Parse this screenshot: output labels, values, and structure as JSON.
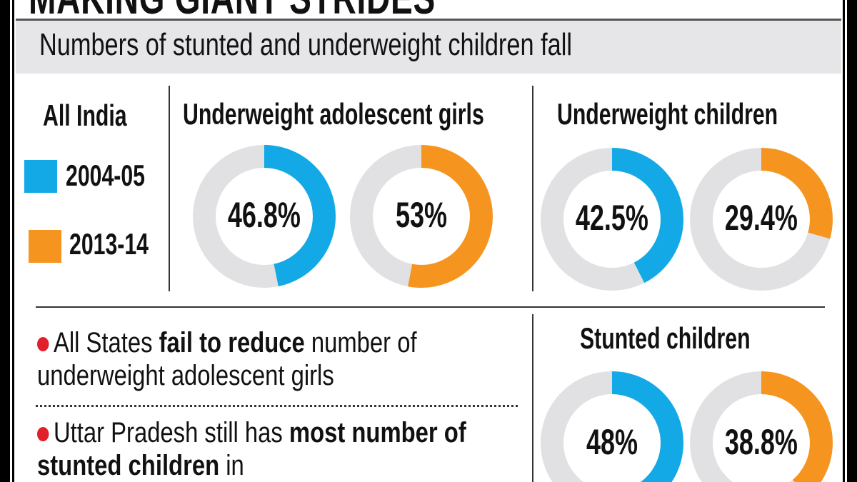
{
  "header": {
    "title": "MAKING GIANT STRIDES",
    "subtitle": "Numbers of stunted and underweight children fall"
  },
  "legend": {
    "region": "All India",
    "items": [
      {
        "label": "2004-05",
        "color": "#12a9e6"
      },
      {
        "label": "2013-14",
        "color": "#f5951f"
      }
    ]
  },
  "bullets": [
    {
      "pre": "All States ",
      "bold": "fail to reduce",
      "post": " number of underweight adolescent girls"
    },
    {
      "pre": "Uttar Pradesh still has ",
      "bold": "most number of stunted children",
      "post": " in"
    }
  ],
  "chart_data": [
    {
      "type": "pie",
      "title": "Underweight adolescent girls",
      "categories": [
        "2004-05",
        "2013-14"
      ],
      "values": [
        46.8,
        53
      ],
      "labels": [
        "46.8%",
        "53%"
      ]
    },
    {
      "type": "pie",
      "title": "Underweight children",
      "categories": [
        "2004-05",
        "2013-14"
      ],
      "values": [
        42.5,
        29.4
      ],
      "labels": [
        "42.5%",
        "29.4%"
      ]
    },
    {
      "type": "pie",
      "title": "Stunted children",
      "categories": [
        "2004-05",
        "2013-14"
      ],
      "values": [
        48,
        38.8
      ],
      "labels": [
        "48%",
        "38.8%"
      ]
    }
  ],
  "colors": {
    "track": "#e1e1e3",
    "bullet": "#e0202a"
  }
}
